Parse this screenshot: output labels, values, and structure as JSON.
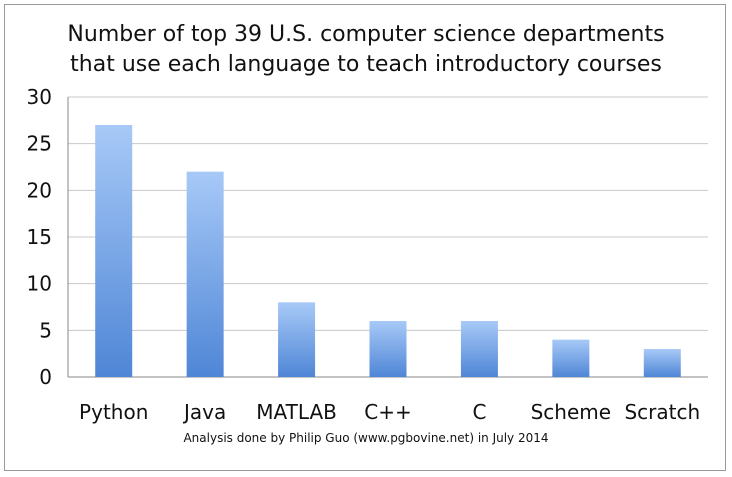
{
  "chart_data": {
    "type": "bar",
    "title_lines": [
      "Number of top 39 U.S. computer science departments",
      "that use each language to teach introductory courses"
    ],
    "categories": [
      "Python",
      "Java",
      "MATLAB",
      "C++",
      "C",
      "Scheme",
      "Scratch"
    ],
    "values": [
      27,
      22,
      8,
      6,
      6,
      4,
      3
    ],
    "ylim": [
      0,
      30
    ],
    "yticks": [
      0,
      5,
      10,
      15,
      20,
      25,
      30
    ],
    "grid": true,
    "bar_color_top": "#a7c9f7",
    "bar_color_bottom": "#4f86d6",
    "footnote": "Analysis done by Philip Guo (www.pgbovine.net) in July 2014"
  }
}
